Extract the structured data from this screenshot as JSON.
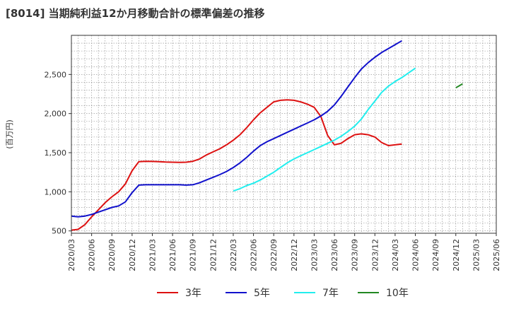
{
  "chart_data": {
    "type": "line",
    "title": "[8014]  当期純利益12か月移動合計の標準偏差の推移",
    "ylabel": "(百万円)",
    "xlabel": "",
    "x_ticks": [
      "2020/03",
      "2020/06",
      "2020/09",
      "2020/12",
      "2021/03",
      "2021/06",
      "2021/09",
      "2021/12",
      "2022/03",
      "2022/06",
      "2022/09",
      "2022/12",
      "2023/03",
      "2023/06",
      "2023/09",
      "2023/12",
      "2024/03",
      "2024/06",
      "2024/09",
      "2024/12",
      "2025/03",
      "2025/06"
    ],
    "y_ticks": [
      500,
      1000,
      1500,
      2000,
      2500
    ],
    "y_tick_labels": [
      "500",
      "1,000",
      "1,500",
      "2,000",
      "2,500"
    ],
    "ylim": [
      470,
      3000
    ],
    "grid": true,
    "legend_position": "bottom",
    "series": [
      {
        "name": "3年",
        "color": "#dd1111",
        "start": "2020/03",
        "values": [
          510,
          520,
          580,
          680,
          770,
          860,
          935,
          1000,
          1100,
          1270,
          1385,
          1390,
          1388,
          1385,
          1380,
          1378,
          1376,
          1378,
          1390,
          1420,
          1470,
          1510,
          1550,
          1600,
          1660,
          1730,
          1820,
          1920,
          2010,
          2080,
          2150,
          2170,
          2175,
          2170,
          2150,
          2120,
          2080,
          1960,
          1720,
          1600,
          1620,
          1680,
          1730,
          1740,
          1730,
          1700,
          1630,
          1590,
          1600,
          1610
        ]
      },
      {
        "name": "5年",
        "color": "#1111cc",
        "start": "2020/03",
        "values": [
          690,
          680,
          690,
          710,
          740,
          770,
          800,
          820,
          870,
          990,
          1085,
          1090,
          1090,
          1090,
          1090,
          1090,
          1090,
          1085,
          1090,
          1115,
          1150,
          1185,
          1220,
          1260,
          1310,
          1370,
          1440,
          1520,
          1590,
          1640,
          1680,
          1720,
          1760,
          1800,
          1840,
          1880,
          1920,
          1970,
          2030,
          2110,
          2220,
          2340,
          2460,
          2570,
          2650,
          2720,
          2780,
          2830,
          2880,
          2930
        ]
      },
      {
        "name": "7年",
        "color": "#22eeee",
        "start": "2022/03",
        "values": [
          1010,
          1040,
          1080,
          1110,
          1150,
          1200,
          1250,
          1310,
          1370,
          1420,
          1460,
          1500,
          1540,
          1580,
          1620,
          1660,
          1710,
          1770,
          1840,
          1930,
          2050,
          2160,
          2270,
          2350,
          2410,
          2460,
          2520,
          2580
        ]
      },
      {
        "name": "10年",
        "color": "#228822",
        "start": "2024/12",
        "values": [
          2330,
          2380
        ]
      }
    ]
  }
}
